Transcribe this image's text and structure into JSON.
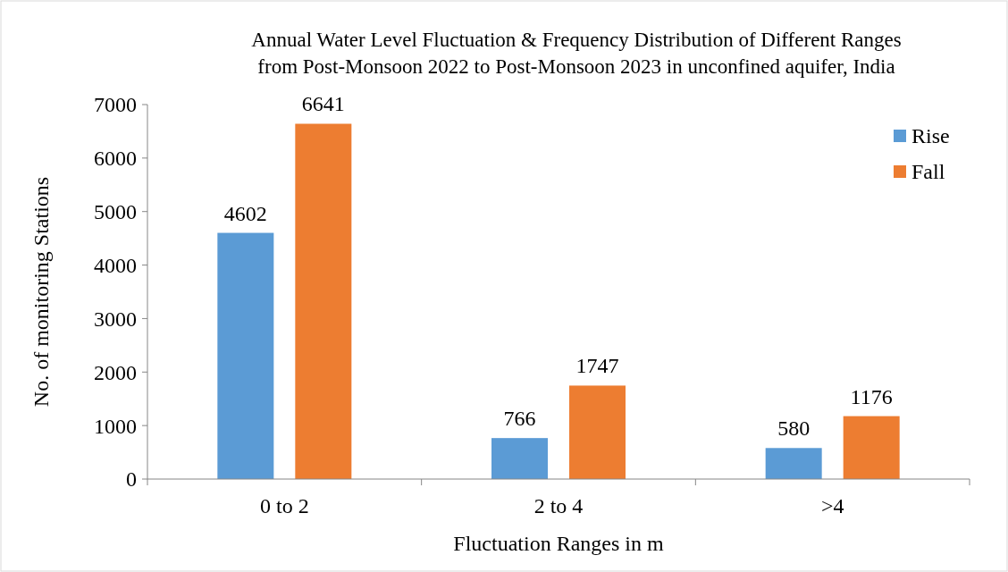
{
  "chart_data": {
    "type": "bar",
    "title": "Annual Water Level Fluctuation & Frequency Distribution of Different Ranges\nfrom Post-Monsoon 2022 to Post-Monsoon 2023 in unconfined aquifer, India",
    "xlabel": "Fluctuation Ranges in m",
    "ylabel": "No. of monitoring Stations",
    "categories": [
      "0 to 2",
      "2 to 4",
      ">4"
    ],
    "series": [
      {
        "name": "Rise",
        "color": "#5b9bd5",
        "values": [
          4602,
          766,
          580
        ]
      },
      {
        "name": "Fall",
        "color": "#ed7d31",
        "values": [
          6641,
          1747,
          1176
        ]
      }
    ],
    "ylim": [
      0,
      7000
    ],
    "yticks": [
      0,
      1000,
      2000,
      3000,
      4000,
      5000,
      6000,
      7000
    ],
    "data_labels": true,
    "legend": "top right",
    "grid": false
  }
}
